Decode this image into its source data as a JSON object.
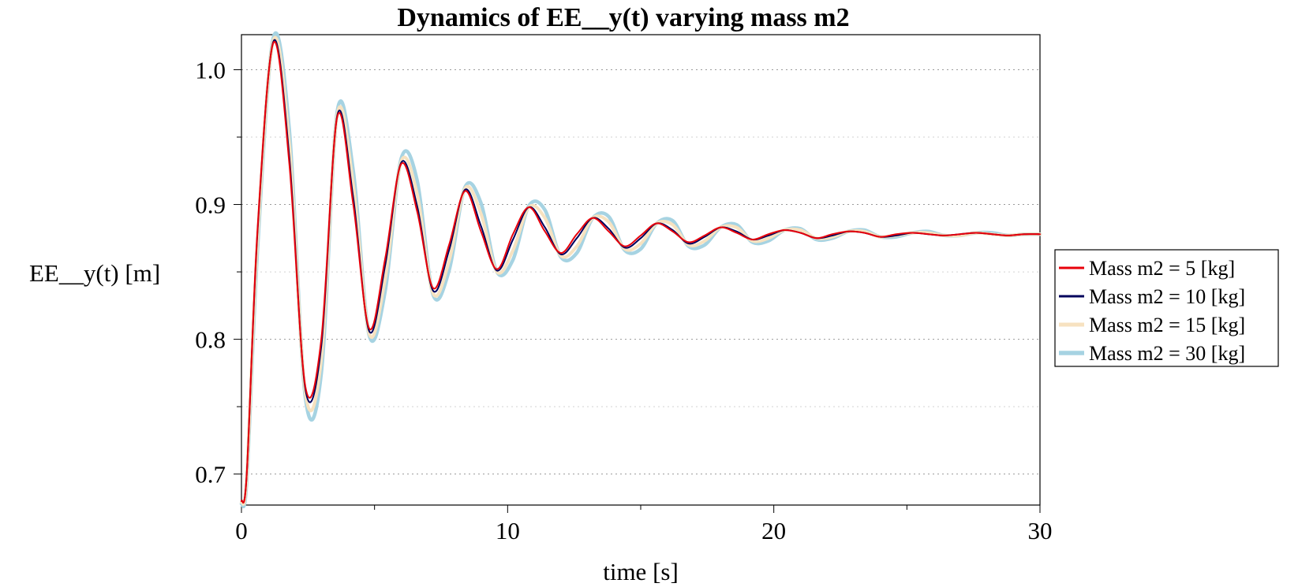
{
  "chart_data": {
    "type": "line",
    "title": "Dynamics of EE__y(t) varying mass m2",
    "xlabel": "time [s]",
    "ylabel": "EE__y(t) [m]",
    "xlim": [
      0,
      30
    ],
    "ylim": [
      0.677,
      1.026
    ],
    "xticks": [
      0,
      10,
      20,
      30
    ],
    "xtick_labels": [
      "0",
      "10",
      "20",
      "30"
    ],
    "yticks": [
      0.7,
      0.8,
      0.9,
      1.0
    ],
    "ytick_labels": [
      "0.7",
      "0.8",
      "0.9",
      "1.0"
    ],
    "grid": "horizontal-dotted",
    "legend_position": "right",
    "series": [
      {
        "name": "Mass m2 = 5 [kg]",
        "color": "#e8000b",
        "x": [
          0,
          0.2,
          0.6,
          1.2,
          1.8,
          2.4,
          3.0,
          3.6,
          4.2,
          4.8,
          5.4,
          6.0,
          6.6,
          7.2,
          7.8,
          8.4,
          9.0,
          9.6,
          10.2,
          10.8,
          11.4,
          12.0,
          12.6,
          13.2,
          13.8,
          14.4,
          15.0,
          15.6,
          16.2,
          16.8,
          17.4,
          18.0,
          18.6,
          19.2,
          19.8,
          20.4,
          21.0,
          21.6,
          22.2,
          22.8,
          23.4,
          24.0,
          24.6,
          25.2,
          25.8,
          26.4,
          27.0,
          27.6,
          28.2,
          28.8,
          29.4,
          30.0
        ],
        "y": [
          0.68,
          0.7,
          0.88,
          1.02,
          0.93,
          0.765,
          0.8,
          0.965,
          0.9,
          0.808,
          0.86,
          0.93,
          0.895,
          0.838,
          0.87,
          0.91,
          0.88,
          0.852,
          0.878,
          0.898,
          0.88,
          0.864,
          0.878,
          0.89,
          0.88,
          0.869,
          0.877,
          0.886,
          0.88,
          0.872,
          0.877,
          0.883,
          0.879,
          0.874,
          0.878,
          0.881,
          0.879,
          0.875,
          0.878,
          0.88,
          0.879,
          0.876,
          0.878,
          0.879,
          0.878,
          0.877,
          0.878,
          0.879,
          0.878,
          0.877,
          0.878,
          0.878
        ]
      },
      {
        "name": "Mass m2 = 10 [kg]",
        "color": "#00005c",
        "x": [
          0,
          0.2,
          0.6,
          1.2,
          1.8,
          2.4,
          3.0,
          3.6,
          4.2,
          4.8,
          5.4,
          6.0,
          6.6,
          7.2,
          7.8,
          8.4,
          9.0,
          9.6,
          10.2,
          10.8,
          11.4,
          12.0,
          12.6,
          13.2,
          13.8,
          14.4,
          15.0,
          15.6,
          16.2,
          16.8,
          17.4,
          18.0,
          18.6,
          19.2,
          19.8,
          20.4,
          21.0,
          21.6,
          22.2,
          22.8,
          23.4,
          24.0,
          24.6,
          25.2,
          25.8,
          26.4,
          27.0,
          27.6,
          28.2,
          28.8,
          29.4,
          30.0
        ],
        "y": [
          0.68,
          0.7,
          0.878,
          1.021,
          0.935,
          0.763,
          0.795,
          0.966,
          0.905,
          0.806,
          0.855,
          0.931,
          0.899,
          0.836,
          0.866,
          0.911,
          0.884,
          0.851,
          0.874,
          0.898,
          0.883,
          0.863,
          0.875,
          0.89,
          0.882,
          0.868,
          0.875,
          0.886,
          0.881,
          0.871,
          0.876,
          0.883,
          0.88,
          0.874,
          0.877,
          0.881,
          0.879,
          0.875,
          0.877,
          0.88,
          0.879,
          0.876,
          0.877,
          0.879,
          0.878,
          0.877,
          0.878,
          0.879,
          0.878,
          0.877,
          0.878,
          0.878
        ]
      },
      {
        "name": "Mass m2 = 15 [kg]",
        "color": "#f7e2c0",
        "x": [
          0,
          0.2,
          0.6,
          1.2,
          1.8,
          2.4,
          3.0,
          3.6,
          4.2,
          4.8,
          5.4,
          6.0,
          6.6,
          7.2,
          7.8,
          8.4,
          9.0,
          9.6,
          10.2,
          10.8,
          11.4,
          12.0,
          12.6,
          13.2,
          13.8,
          14.4,
          15.0,
          15.6,
          16.2,
          16.8,
          17.4,
          18.0,
          18.6,
          19.2,
          19.8,
          20.4,
          21.0,
          21.6,
          22.2,
          22.8,
          23.4,
          24.0,
          24.6,
          25.2,
          25.8,
          26.4,
          27.0,
          27.6,
          28.2,
          28.8,
          29.4,
          30.0
        ],
        "y": [
          0.679,
          0.698,
          0.872,
          1.022,
          0.945,
          0.76,
          0.785,
          0.967,
          0.915,
          0.804,
          0.845,
          0.932,
          0.908,
          0.834,
          0.858,
          0.912,
          0.893,
          0.85,
          0.866,
          0.898,
          0.89,
          0.862,
          0.869,
          0.89,
          0.887,
          0.867,
          0.871,
          0.886,
          0.885,
          0.87,
          0.873,
          0.883,
          0.883,
          0.873,
          0.875,
          0.881,
          0.881,
          0.875,
          0.876,
          0.88,
          0.88,
          0.876,
          0.877,
          0.879,
          0.879,
          0.877,
          0.877,
          0.879,
          0.878,
          0.877,
          0.878,
          0.878
        ]
      },
      {
        "name": "Mass m2 = 30 [kg]",
        "color": "#a6d3e2",
        "x": [
          0,
          0.2,
          0.6,
          1.2,
          1.8,
          2.4,
          3.0,
          3.6,
          4.2,
          4.8,
          5.4,
          6.0,
          6.6,
          7.2,
          7.8,
          8.4,
          9.0,
          9.6,
          10.2,
          10.8,
          11.4,
          12.0,
          12.6,
          13.2,
          13.8,
          14.4,
          15.0,
          15.6,
          16.2,
          16.8,
          17.4,
          18.0,
          18.6,
          19.2,
          19.8,
          20.4,
          21.0,
          21.6,
          22.2,
          22.8,
          23.4,
          24.0,
          24.6,
          25.2,
          25.8,
          26.4,
          27.0,
          27.6,
          28.2,
          28.8,
          29.4,
          30.0
        ],
        "y": [
          0.678,
          0.695,
          0.865,
          1.024,
          0.955,
          0.757,
          0.775,
          0.969,
          0.925,
          0.803,
          0.836,
          0.934,
          0.918,
          0.833,
          0.851,
          0.913,
          0.901,
          0.85,
          0.859,
          0.899,
          0.896,
          0.861,
          0.864,
          0.89,
          0.891,
          0.866,
          0.867,
          0.886,
          0.888,
          0.869,
          0.87,
          0.883,
          0.885,
          0.872,
          0.873,
          0.881,
          0.882,
          0.874,
          0.875,
          0.88,
          0.881,
          0.876,
          0.876,
          0.879,
          0.88,
          0.877,
          0.877,
          0.879,
          0.879,
          0.877,
          0.878,
          0.878
        ]
      }
    ]
  }
}
